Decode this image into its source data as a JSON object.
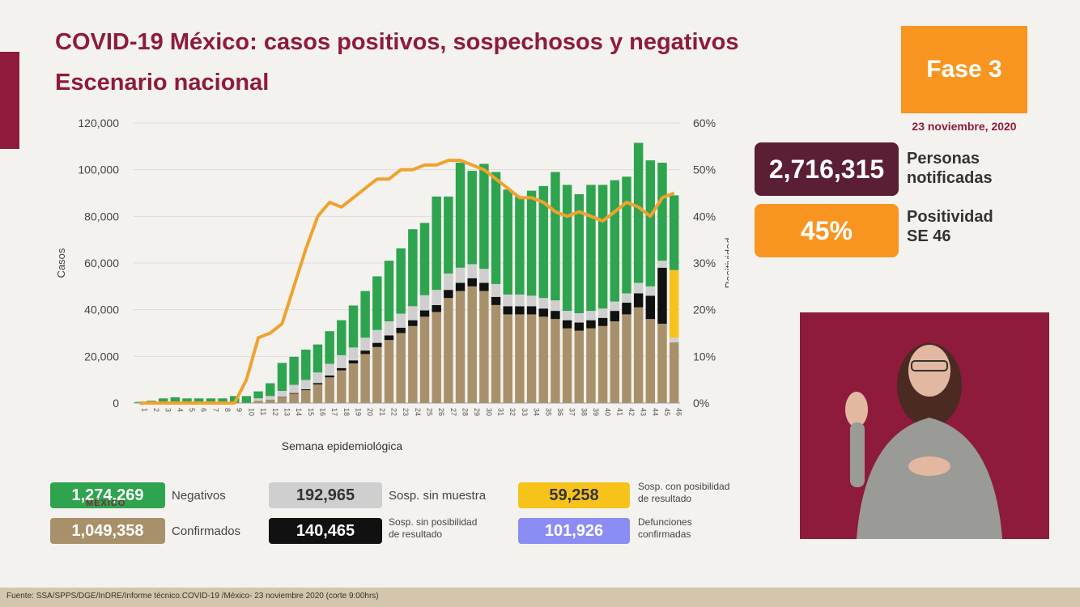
{
  "header": {
    "title": "COVID-19 México: casos positivos, sospechosos y negativos",
    "subtitle": "Escenario nacional"
  },
  "phase": {
    "label": "Fase 3",
    "date": "23 noviembre, 2020"
  },
  "kpis": [
    {
      "value": "2,716,315",
      "label_line1": "Personas",
      "label_line2": "notificadas",
      "color": "#5b1f35"
    },
    {
      "value": "45%",
      "label_line1": "Positividad",
      "label_line2": "SE 46",
      "color": "#f89520"
    }
  ],
  "legend": {
    "negativos": {
      "value": "1,274,269",
      "label": "Negativos",
      "color": "#2ea44f"
    },
    "confirmados": {
      "value": "1,049,358",
      "label": "Confirmados",
      "color": "#a8916a"
    },
    "sin_muestra": {
      "value": "192,965",
      "label": "Sosp. sin muestra",
      "color": "#cfcfcf"
    },
    "sin_posibilidad": {
      "value": "140,465",
      "label_line1": "Sosp. sin posibilidad",
      "label_line2": "de resultado",
      "color": "#111111"
    },
    "con_posibilidad": {
      "value": "59,258",
      "label_line1": "Sosp. con posibilidad",
      "label_line2": "de resultado",
      "color": "#f7c31b"
    },
    "defunciones": {
      "value": "101,926",
      "label_line1": "Defunciones",
      "label_line2": "confirmadas",
      "color": "#8c8cf5"
    }
  },
  "mexico_tag": "MÉXICO",
  "footer": {
    "source": "Fuente: SSA/SPPS/DGE/InDRE/Informe técnico.COVID-19 /México- 23 noviembre 2020 (corte 9:00hrs)"
  },
  "chart_data": {
    "type": "bar",
    "stacked": true,
    "xlabel": "Semana epidemiológica",
    "ylabel": "Casos",
    "y2label": "Positividad",
    "ylim": [
      0,
      120000
    ],
    "yticks": [
      "0",
      "20,000",
      "40,000",
      "60,000",
      "80,000",
      "100,000",
      "120,000"
    ],
    "y2lim": [
      0,
      60
    ],
    "y2ticks": [
      "0%",
      "10%",
      "20%",
      "30%",
      "40%",
      "50%",
      "60%"
    ],
    "categories": [
      "1",
      "2",
      "3",
      "4",
      "5",
      "6",
      "7",
      "8",
      "9",
      "10",
      "11",
      "12",
      "13",
      "14",
      "15",
      "16",
      "17",
      "18",
      "19",
      "20",
      "21",
      "22",
      "23",
      "24",
      "25",
      "26",
      "27",
      "28",
      "29",
      "30",
      "31",
      "32",
      "33",
      "34",
      "35",
      "36",
      "37",
      "38",
      "39",
      "40",
      "41",
      "42",
      "43",
      "44",
      "45",
      "46"
    ],
    "series": [
      {
        "name": "Confirmados",
        "color": "#a8916a",
        "values": [
          0,
          0,
          0,
          0,
          0,
          0,
          0,
          0,
          0,
          0,
          1000,
          1500,
          2500,
          4000,
          5500,
          8000,
          11000,
          14000,
          17000,
          21000,
          24000,
          27000,
          30000,
          33000,
          37000,
          39000,
          45000,
          48000,
          50000,
          48000,
          42000,
          38000,
          38000,
          38000,
          37000,
          36000,
          32000,
          31000,
          32000,
          33000,
          35000,
          38000,
          41000,
          36000,
          34000,
          26000
        ]
      },
      {
        "name": "Sosp. sin posibilidad de resultado",
        "color": "#111111",
        "values": [
          0,
          0,
          0,
          0,
          0,
          0,
          0,
          0,
          0,
          0,
          0,
          0,
          200,
          300,
          400,
          600,
          800,
          1000,
          1300,
          1500,
          1800,
          2000,
          2300,
          2500,
          2700,
          3000,
          3500,
          3500,
          3500,
          3500,
          3500,
          3500,
          3500,
          3500,
          3500,
          3500,
          3500,
          3500,
          3500,
          3500,
          4500,
          5000,
          6000,
          10000,
          24000,
          0
        ]
      },
      {
        "name": "Sosp. sin muestra",
        "color": "#cfcfcf",
        "values": [
          0,
          0,
          0,
          0,
          0,
          0,
          0,
          0,
          0,
          0,
          1000,
          1500,
          2500,
          3500,
          4000,
          4500,
          5000,
          5500,
          5500,
          5500,
          5500,
          6000,
          6000,
          6000,
          6500,
          6500,
          7000,
          6500,
          6000,
          6000,
          5500,
          5000,
          5000,
          4500,
          4500,
          4500,
          4000,
          4000,
          4000,
          4000,
          4000,
          4000,
          4500,
          4000,
          3000,
          2000
        ]
      },
      {
        "name": "Sosp. con posibilidad de resultado",
        "color": "#f7c31b",
        "values": [
          0,
          0,
          0,
          0,
          0,
          0,
          0,
          0,
          0,
          0,
          0,
          0,
          0,
          0,
          0,
          0,
          0,
          0,
          0,
          0,
          0,
          0,
          0,
          0,
          0,
          0,
          0,
          0,
          0,
          0,
          0,
          0,
          0,
          0,
          0,
          0,
          0,
          0,
          0,
          0,
          0,
          0,
          0,
          0,
          0,
          29000
        ]
      },
      {
        "name": "Negativos",
        "color": "#2ea44f",
        "values": [
          500,
          1000,
          2000,
          2500,
          2000,
          2000,
          2000,
          2000,
          3000,
          3000,
          3000,
          5500,
          12000,
          12000,
          13000,
          12000,
          14000,
          15000,
          18000,
          20000,
          23000,
          26000,
          28000,
          33000,
          31000,
          40000,
          33000,
          45000,
          40000,
          45000,
          48000,
          45000,
          42000,
          45000,
          48000,
          55000,
          54000,
          51000,
          54000,
          53000,
          52000,
          50000,
          60000,
          54000,
          42000,
          32000
        ]
      },
      {
        "name": "Positividad",
        "type": "line",
        "axis": "y2",
        "color": "#f0a22e",
        "values": [
          0,
          0,
          0,
          0,
          0,
          0,
          0,
          0,
          0,
          5,
          14,
          15,
          17,
          25,
          33,
          40,
          43,
          42,
          44,
          46,
          48,
          48,
          50,
          50,
          51,
          51,
          52,
          52,
          51,
          50,
          48,
          46,
          44,
          44,
          43,
          41,
          40,
          41,
          40,
          39,
          41,
          43,
          42,
          40,
          44,
          45
        ]
      }
    ]
  }
}
